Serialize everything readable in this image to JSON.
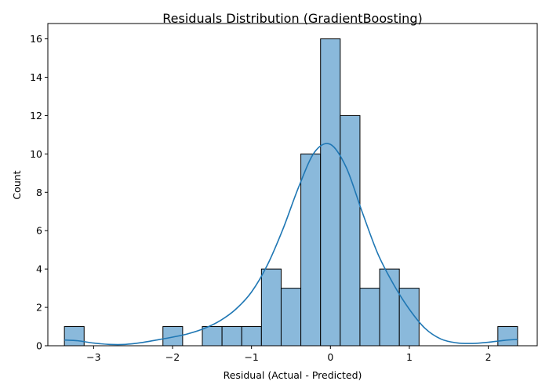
{
  "chart_data": {
    "type": "bar",
    "title": "Residuals Distribution (GradientBoosting)",
    "xlabel": "Residual (Actual - Predicted)",
    "ylabel": "Count",
    "xlim": [
      -3.58,
      2.62
    ],
    "ylim": [
      0,
      16.8
    ],
    "xticks": [
      -3,
      -2,
      -1,
      0,
      1,
      2
    ],
    "xtick_labels": [
      "−3",
      "−2",
      "−1",
      "0",
      "1",
      "2"
    ],
    "yticks": [
      0,
      2,
      4,
      6,
      8,
      10,
      12,
      14,
      16
    ],
    "grid": false,
    "bin_start": -3.37,
    "bin_width": 0.2496,
    "counts": [
      1,
      0,
      0,
      0,
      0,
      1,
      0,
      1,
      1,
      1,
      4,
      3,
      10,
      16,
      12,
      3,
      4,
      3,
      0,
      0,
      0,
      0,
      1
    ],
    "kde": {
      "x": [
        -3.37,
        -3.2,
        -3.0,
        -2.8,
        -2.6,
        -2.4,
        -2.2,
        -2.0,
        -1.8,
        -1.6,
        -1.4,
        -1.2,
        -1.0,
        -0.8,
        -0.6,
        -0.4,
        -0.2,
        0.0,
        0.2,
        0.4,
        0.6,
        0.8,
        1.0,
        1.2,
        1.4,
        1.6,
        1.8,
        2.0,
        2.2,
        2.37
      ],
      "y": [
        0.3,
        0.26,
        0.14,
        0.07,
        0.07,
        0.16,
        0.3,
        0.45,
        0.63,
        0.9,
        1.3,
        1.9,
        2.8,
        4.2,
        6.1,
        8.3,
        10.1,
        10.5,
        9.3,
        7.0,
        4.8,
        3.2,
        1.9,
        0.9,
        0.35,
        0.15,
        0.12,
        0.18,
        0.28,
        0.33
      ]
    }
  }
}
